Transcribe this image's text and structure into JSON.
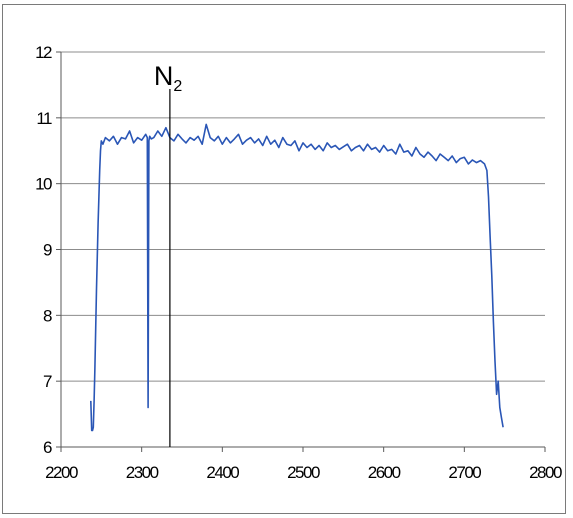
{
  "chart_data": {
    "type": "line",
    "title": "",
    "xlabel": "",
    "ylabel": "",
    "xlim": [
      2200,
      2800
    ],
    "ylim": [
      6,
      12
    ],
    "x_ticks": [
      "2200",
      "2300",
      "2400",
      "2500",
      "2600",
      "2700",
      "2800"
    ],
    "y_ticks": [
      "6",
      "7",
      "8",
      "9",
      "10",
      "11",
      "12"
    ],
    "grid": "horizontal",
    "legend": "none",
    "series_color": "#2a56b6",
    "annotation": {
      "label": "N",
      "subscript": "2",
      "x": 2335,
      "line_color": "#000000"
    },
    "series": [
      {
        "x": [
          2237,
          2238,
          2239,
          2240,
          2241,
          2242,
          2243,
          2244,
          2245,
          2246,
          2247,
          2248,
          2249,
          2250,
          2252,
          2255,
          2260,
          2265,
          2270,
          2275,
          2280,
          2285,
          2290,
          2295,
          2300,
          2305,
          2307,
          2308,
          2309,
          2310,
          2312,
          2315,
          2320,
          2325,
          2330,
          2335,
          2340,
          2345,
          2350,
          2355,
          2360,
          2365,
          2370,
          2375,
          2380,
          2385,
          2390,
          2395,
          2400,
          2405,
          2410,
          2415,
          2420,
          2425,
          2430,
          2435,
          2440,
          2445,
          2450,
          2455,
          2460,
          2465,
          2470,
          2475,
          2480,
          2485,
          2490,
          2495,
          2500,
          2505,
          2510,
          2515,
          2520,
          2525,
          2530,
          2535,
          2540,
          2545,
          2550,
          2555,
          2560,
          2565,
          2570,
          2575,
          2580,
          2585,
          2590,
          2595,
          2600,
          2605,
          2610,
          2615,
          2620,
          2625,
          2630,
          2635,
          2640,
          2645,
          2650,
          2655,
          2660,
          2665,
          2670,
          2675,
          2680,
          2685,
          2690,
          2695,
          2700,
          2705,
          2710,
          2715,
          2720,
          2725,
          2728,
          2730,
          2732,
          2734,
          2736,
          2738,
          2740,
          2742,
          2744,
          2746,
          2748
        ],
        "y": [
          6.7,
          6.25,
          6.25,
          6.3,
          6.7,
          7.2,
          7.8,
          8.4,
          8.9,
          9.4,
          9.8,
          10.2,
          10.5,
          10.65,
          10.6,
          10.7,
          10.65,
          10.72,
          10.6,
          10.7,
          10.68,
          10.8,
          10.62,
          10.7,
          10.66,
          10.75,
          10.7,
          6.6,
          10.65,
          10.72,
          10.68,
          10.7,
          10.8,
          10.72,
          10.85,
          10.7,
          10.65,
          10.75,
          10.68,
          10.62,
          10.7,
          10.66,
          10.72,
          10.6,
          10.9,
          10.7,
          10.65,
          10.72,
          10.6,
          10.7,
          10.62,
          10.68,
          10.75,
          10.6,
          10.66,
          10.7,
          10.62,
          10.68,
          10.58,
          10.72,
          10.6,
          10.66,
          10.55,
          10.7,
          10.6,
          10.58,
          10.65,
          10.5,
          10.62,
          10.55,
          10.6,
          10.52,
          10.58,
          10.5,
          10.62,
          10.55,
          10.58,
          10.52,
          10.56,
          10.6,
          10.5,
          10.55,
          10.58,
          10.5,
          10.6,
          10.52,
          10.55,
          10.48,
          10.58,
          10.5,
          10.52,
          10.45,
          10.6,
          10.48,
          10.5,
          10.42,
          10.55,
          10.45,
          10.4,
          10.48,
          10.42,
          10.35,
          10.45,
          10.4,
          10.35,
          10.42,
          10.32,
          10.38,
          10.4,
          10.3,
          10.36,
          10.32,
          10.35,
          10.3,
          10.2,
          9.8,
          9.2,
          8.6,
          7.9,
          7.3,
          6.8,
          7.0,
          6.6,
          6.45,
          6.3
        ]
      }
    ]
  }
}
